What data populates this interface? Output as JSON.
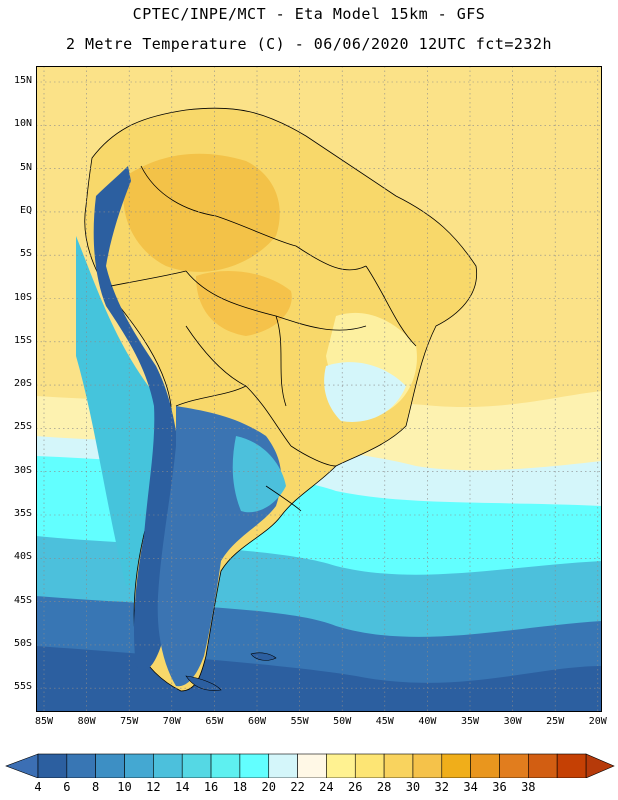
{
  "title_line1": "CPTEC/INPE/MCT -  Eta Model 15km - GFS",
  "title_line2": "2 Metre Temperature (C) - 06/06/2020 12UTC fct=232h",
  "lat_labels": [
    "15N",
    "10N",
    "5N",
    "EQ",
    "5S",
    "10S",
    "15S",
    "20S",
    "25S",
    "30S",
    "35S",
    "40S",
    "45S",
    "50S",
    "55S"
  ],
  "lon_labels": [
    "85W",
    "80W",
    "75W",
    "70W",
    "65W",
    "60W",
    "55W",
    "50W",
    "45W",
    "40W",
    "35W",
    "30W",
    "25W",
    "20W"
  ],
  "colorbar": {
    "labels": [
      "4",
      "6",
      "8",
      "10",
      "12",
      "14",
      "16",
      "18",
      "20",
      "22",
      "24",
      "26",
      "28",
      "30",
      "32",
      "34",
      "36",
      "38"
    ],
    "colors": [
      "#2c5fa0",
      "#3876b4",
      "#3d8fc4",
      "#44a8d2",
      "#4cc0dc",
      "#55d8e4",
      "#5ef0f0",
      "#62ffff",
      "#d4f6fa",
      "#fff8e6",
      "#fff291",
      "#fde574",
      "#f9d35e",
      "#f5c24a",
      "#f0ae1a",
      "#e9961e",
      "#e17d1e",
      "#d25e12",
      "#c54004"
    ],
    "left_arrow_color": "#3c6fb4",
    "right_arrow_color": "#b63a0a"
  },
  "map_colors": {
    "ocean_north": "#fbe288",
    "ocean_subtropic": "#fdf2b0",
    "ocean_cool": "#62ffff",
    "ocean_cold": "#45c4dc",
    "ocean_south": "#2c5fa0",
    "land_hot": "#f3c248",
    "land_warm": "#f8d86a",
    "land_mild": "#fdf0a0",
    "andes_cold": "#2c5fa0",
    "patagonia": "#3b74b2",
    "border": "#000000",
    "grid": "#8a8a8a"
  }
}
